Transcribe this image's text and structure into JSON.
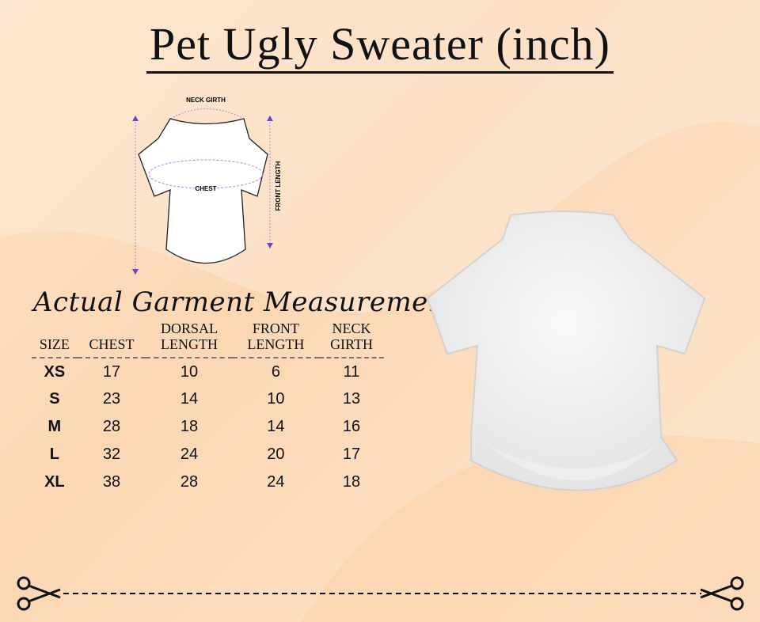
{
  "title": "Pet Ugly Sweater (inch)",
  "diagram": {
    "neck_label": "NECK GIRTH",
    "chest_label": "CHEST",
    "front_label": "FRONT LENGTH",
    "arrow_color": "#7b3fc4"
  },
  "subtitle": "Actual Garment Measurements",
  "table": {
    "headers": [
      [
        "SIZE"
      ],
      [
        "CHEST"
      ],
      [
        "DORSAL",
        "LENGTH"
      ],
      [
        "FRONT",
        "LENGTH"
      ],
      [
        "NECK",
        "GIRTH"
      ]
    ],
    "rows": [
      [
        "XS",
        "17",
        "10",
        "6",
        "11"
      ],
      [
        "S",
        "23",
        "14",
        "10",
        "13"
      ],
      [
        "M",
        "28",
        "18",
        "14",
        "16"
      ],
      [
        "L",
        "32",
        "24",
        "20",
        "17"
      ],
      [
        "XL",
        "38",
        "28",
        "24",
        "18"
      ]
    ]
  },
  "icons": {
    "left": "scissors-icon",
    "right": "scissors-icon"
  }
}
